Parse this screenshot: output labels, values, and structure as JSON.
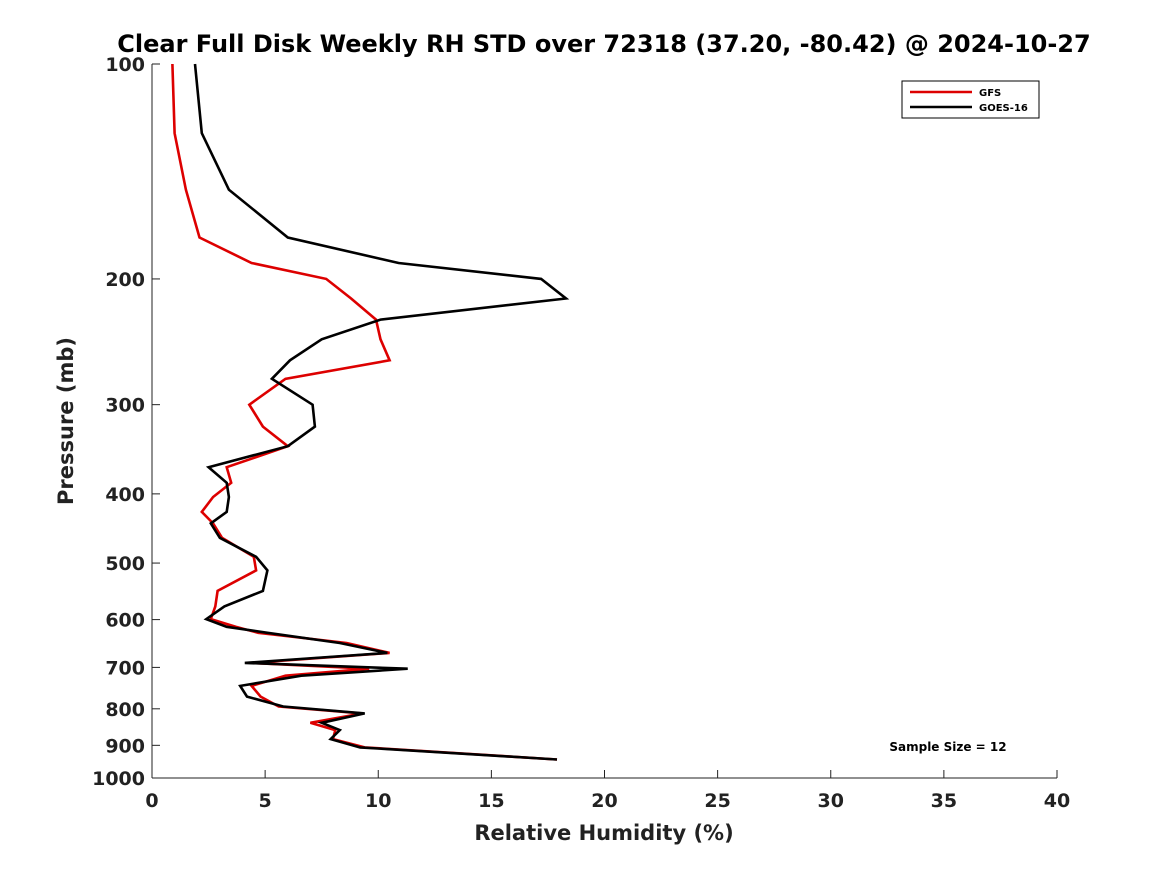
{
  "chart_data": {
    "type": "line",
    "title": "Clear Full Disk Weekly RH STD over 72318 (37.20, -80.42) @ 2024-10-27",
    "xlabel": "Relative Humidity (%)",
    "ylabel": "Pressure (mb)",
    "xlim": [
      0,
      40
    ],
    "ylim": [
      1000,
      100
    ],
    "y_scale": "log",
    "x_ticks": [
      "0",
      "5",
      "10",
      "15",
      "20",
      "25",
      "30",
      "35",
      "40"
    ],
    "y_ticks": [
      "100",
      "200",
      "300",
      "400",
      "500",
      "600",
      "700",
      "800",
      "900",
      "1000"
    ],
    "grid": false,
    "legend_position": "top-right",
    "annotation": "Sample Size = 12",
    "series": [
      {
        "name": "GFS",
        "color": "#dd0000",
        "points": [
          [
            0.9,
            100
          ],
          [
            1.0,
            125
          ],
          [
            1.5,
            150
          ],
          [
            2.1,
            175
          ],
          [
            4.4,
            190
          ],
          [
            7.7,
            200
          ],
          [
            8.8,
            213
          ],
          [
            9.9,
            228
          ],
          [
            10.1,
            243
          ],
          [
            10.5,
            260
          ],
          [
            5.9,
            276
          ],
          [
            4.3,
            300
          ],
          [
            4.9,
            322
          ],
          [
            6.0,
            343
          ],
          [
            3.3,
            367
          ],
          [
            3.5,
            386
          ],
          [
            2.7,
            404
          ],
          [
            2.2,
            424
          ],
          [
            2.7,
            440
          ],
          [
            3.1,
            461
          ],
          [
            4.5,
            490
          ],
          [
            4.6,
            512
          ],
          [
            2.9,
            547
          ],
          [
            2.8,
            575
          ],
          [
            2.6,
            599
          ],
          [
            3.7,
            614
          ],
          [
            4.7,
            626
          ],
          [
            8.6,
            647
          ],
          [
            10.5,
            668
          ],
          [
            4.4,
            690
          ],
          [
            9.6,
            703
          ],
          [
            5.9,
            719
          ],
          [
            4.4,
            743
          ],
          [
            4.8,
            769
          ],
          [
            5.6,
            794
          ],
          [
            9.3,
            812
          ],
          [
            7.0,
            837
          ],
          [
            8.1,
            857
          ],
          [
            8.0,
            882
          ],
          [
            9.4,
            906
          ],
          [
            17.9,
            942
          ]
        ]
      },
      {
        "name": "GOES-16",
        "color": "#000000",
        "points": [
          [
            1.9,
            100
          ],
          [
            2.2,
            125
          ],
          [
            3.4,
            150
          ],
          [
            6.0,
            175
          ],
          [
            10.9,
            190
          ],
          [
            17.2,
            200
          ],
          [
            18.3,
            213
          ],
          [
            10.1,
            228
          ],
          [
            7.5,
            243
          ],
          [
            6.1,
            260
          ],
          [
            5.3,
            276
          ],
          [
            7.1,
            300
          ],
          [
            7.2,
            322
          ],
          [
            6.0,
            343
          ],
          [
            2.5,
            367
          ],
          [
            3.3,
            386
          ],
          [
            3.4,
            404
          ],
          [
            3.3,
            424
          ],
          [
            2.6,
            440
          ],
          [
            3.0,
            461
          ],
          [
            4.6,
            490
          ],
          [
            5.1,
            512
          ],
          [
            4.9,
            547
          ],
          [
            3.2,
            575
          ],
          [
            2.4,
            599
          ],
          [
            3.3,
            614
          ],
          [
            5.1,
            626
          ],
          [
            8.3,
            647
          ],
          [
            10.4,
            668
          ],
          [
            4.1,
            690
          ],
          [
            11.3,
            703
          ],
          [
            6.6,
            719
          ],
          [
            3.9,
            743
          ],
          [
            4.2,
            769
          ],
          [
            5.8,
            794
          ],
          [
            9.4,
            812
          ],
          [
            7.5,
            837
          ],
          [
            8.3,
            857
          ],
          [
            7.9,
            882
          ],
          [
            9.2,
            906
          ],
          [
            17.9,
            942
          ]
        ]
      }
    ]
  }
}
